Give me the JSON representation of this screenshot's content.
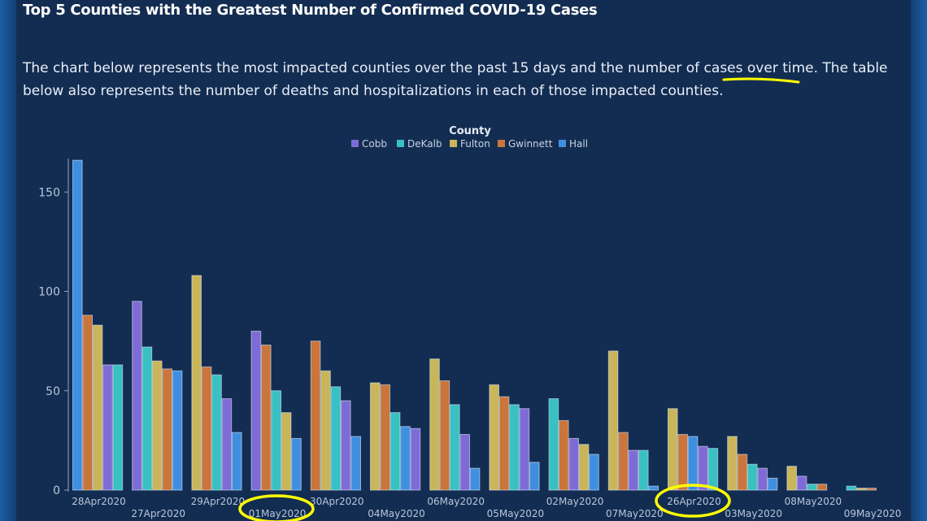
{
  "page": {
    "title": "Top 5 Counties with the Greatest Number of Confirmed COVID-19 Cases",
    "description": "The chart below represents the most impacted counties over the past 15 days and the number of cases over time. The table below also represents the number of deaths and hospitalizations in each of those impacted counties."
  },
  "colors": {
    "background": "#132d52",
    "Cobb": "#7f6bd6",
    "DeKalb": "#38c0c2",
    "Fulton": "#c9b55a",
    "Gwinnett": "#c9753b",
    "Hall": "#3f8fe0",
    "annotation": "#ffff00"
  },
  "chart_data": {
    "type": "bar",
    "legend_title": "County",
    "legend_position": "top-center",
    "series_names": [
      "Cobb",
      "DeKalb",
      "Fulton",
      "Gwinnett",
      "Hall"
    ],
    "ylim": [
      0,
      165
    ],
    "yticks": [
      0,
      50,
      100,
      150
    ],
    "groups": [
      {
        "date": "28Apr2020",
        "bars": [
          [
            "Hall",
            166
          ],
          [
            "Gwinnett",
            88
          ],
          [
            "Fulton",
            83
          ],
          [
            "Cobb",
            63
          ],
          [
            "DeKalb",
            63
          ]
        ]
      },
      {
        "date": "27Apr2020",
        "bars": [
          [
            "Cobb",
            95
          ],
          [
            "DeKalb",
            72
          ],
          [
            "Fulton",
            65
          ],
          [
            "Gwinnett",
            61
          ],
          [
            "Hall",
            60
          ]
        ]
      },
      {
        "date": "29Apr2020",
        "bars": [
          [
            "Fulton",
            108
          ],
          [
            "Gwinnett",
            62
          ],
          [
            "DeKalb",
            58
          ],
          [
            "Cobb",
            46
          ],
          [
            "Hall",
            29
          ]
        ]
      },
      {
        "date": "01May2020",
        "bars": [
          [
            "Cobb",
            80
          ],
          [
            "Gwinnett",
            73
          ],
          [
            "DeKalb",
            50
          ],
          [
            "Fulton",
            39
          ],
          [
            "Hall",
            26
          ]
        ]
      },
      {
        "date": "30Apr2020",
        "bars": [
          [
            "Gwinnett",
            75
          ],
          [
            "Fulton",
            60
          ],
          [
            "DeKalb",
            52
          ],
          [
            "Cobb",
            45
          ],
          [
            "Hall",
            27
          ]
        ]
      },
      {
        "date": "04May2020",
        "bars": [
          [
            "Fulton",
            54
          ],
          [
            "Gwinnett",
            53
          ],
          [
            "DeKalb",
            39
          ],
          [
            "Hall",
            32
          ],
          [
            "Cobb",
            31
          ]
        ]
      },
      {
        "date": "06May2020",
        "bars": [
          [
            "Fulton",
            66
          ],
          [
            "Gwinnett",
            55
          ],
          [
            "DeKalb",
            43
          ],
          [
            "Cobb",
            28
          ],
          [
            "Hall",
            11
          ]
        ]
      },
      {
        "date": "05May2020",
        "bars": [
          [
            "Fulton",
            53
          ],
          [
            "Gwinnett",
            47
          ],
          [
            "DeKalb",
            43
          ],
          [
            "Cobb",
            41
          ],
          [
            "Hall",
            14
          ]
        ]
      },
      {
        "date": "02May2020",
        "bars": [
          [
            "DeKalb",
            46
          ],
          [
            "Gwinnett",
            35
          ],
          [
            "Cobb",
            26
          ],
          [
            "Fulton",
            23
          ],
          [
            "Hall",
            18
          ]
        ]
      },
      {
        "date": "07May2020",
        "bars": [
          [
            "Fulton",
            70
          ],
          [
            "Gwinnett",
            29
          ],
          [
            "Cobb",
            20
          ],
          [
            "DeKalb",
            20
          ],
          [
            "Hall",
            2
          ]
        ]
      },
      {
        "date": "26Apr2020",
        "bars": [
          [
            "Fulton",
            41
          ],
          [
            "Gwinnett",
            28
          ],
          [
            "Hall",
            27
          ],
          [
            "Cobb",
            22
          ],
          [
            "DeKalb",
            21
          ]
        ]
      },
      {
        "date": "03May2020",
        "bars": [
          [
            "Fulton",
            27
          ],
          [
            "Gwinnett",
            18
          ],
          [
            "DeKalb",
            13
          ],
          [
            "Cobb",
            11
          ],
          [
            "Hall",
            6
          ]
        ]
      },
      {
        "date": "08May2020",
        "bars": [
          [
            "Fulton",
            12
          ],
          [
            "Cobb",
            7
          ],
          [
            "DeKalb",
            3
          ],
          [
            "Gwinnett",
            3
          ]
        ]
      },
      {
        "date": "09May2020",
        "bars": [
          [
            "DeKalb",
            2
          ],
          [
            "Fulton",
            1
          ],
          [
            "Gwinnett",
            1
          ]
        ]
      }
    ]
  }
}
